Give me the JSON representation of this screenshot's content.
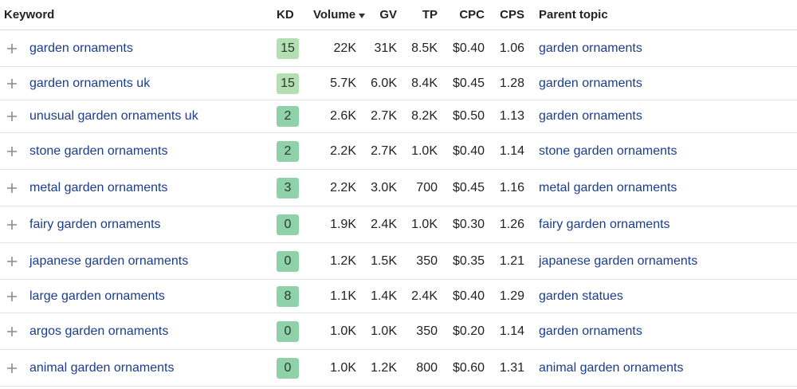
{
  "header": {
    "keyword": "Keyword",
    "kd": "KD",
    "volume": "Volume",
    "gv": "GV",
    "tp": "TP",
    "cpc": "CPC",
    "cps": "CPS",
    "parent_topic": "Parent topic",
    "sort_icon": "caret-down-icon"
  },
  "colors": {
    "link": "#1a3d8f",
    "kd_low": "#8fd1a8",
    "kd_mid": "#b3dfb3"
  },
  "rows": [
    {
      "keyword": "garden ornaments",
      "kd": "15",
      "volume": "22K",
      "gv": "31K",
      "tp": "8.5K",
      "cpc": "$0.40",
      "cps": "1.06",
      "parent_topic": "garden ornaments"
    },
    {
      "keyword": "garden ornaments uk",
      "kd": "15",
      "volume": "5.7K",
      "gv": "6.0K",
      "tp": "8.4K",
      "cpc": "$0.45",
      "cps": "1.28",
      "parent_topic": "garden ornaments"
    },
    {
      "keyword": "unusual garden ornaments uk",
      "kd": "2",
      "volume": "2.6K",
      "gv": "2.7K",
      "tp": "8.2K",
      "cpc": "$0.50",
      "cps": "1.13",
      "parent_topic": "garden ornaments"
    },
    {
      "keyword": "stone garden ornaments",
      "kd": "2",
      "volume": "2.2K",
      "gv": "2.7K",
      "tp": "1.0K",
      "cpc": "$0.40",
      "cps": "1.14",
      "parent_topic": "stone garden ornaments"
    },
    {
      "keyword": "metal garden ornaments",
      "kd": "3",
      "volume": "2.2K",
      "gv": "3.0K",
      "tp": "700",
      "cpc": "$0.45",
      "cps": "1.16",
      "parent_topic": "metal garden ornaments"
    },
    {
      "keyword": "fairy garden ornaments",
      "kd": "0",
      "volume": "1.9K",
      "gv": "2.4K",
      "tp": "1.0K",
      "cpc": "$0.30",
      "cps": "1.26",
      "parent_topic": "fairy garden ornaments"
    },
    {
      "keyword": "japanese garden ornaments",
      "kd": "0",
      "volume": "1.2K",
      "gv": "1.5K",
      "tp": "350",
      "cpc": "$0.35",
      "cps": "1.21",
      "parent_topic": "japanese garden ornaments"
    },
    {
      "keyword": "large garden ornaments",
      "kd": "8",
      "volume": "1.1K",
      "gv": "1.4K",
      "tp": "2.4K",
      "cpc": "$0.40",
      "cps": "1.29",
      "parent_topic": "garden statues"
    },
    {
      "keyword": "argos garden ornaments",
      "kd": "0",
      "volume": "1.0K",
      "gv": "1.0K",
      "tp": "350",
      "cpc": "$0.20",
      "cps": "1.14",
      "parent_topic": "garden ornaments"
    },
    {
      "keyword": "animal garden ornaments",
      "kd": "0",
      "volume": "1.0K",
      "gv": "1.2K",
      "tp": "800",
      "cpc": "$0.60",
      "cps": "1.31",
      "parent_topic": "animal garden ornaments"
    }
  ]
}
